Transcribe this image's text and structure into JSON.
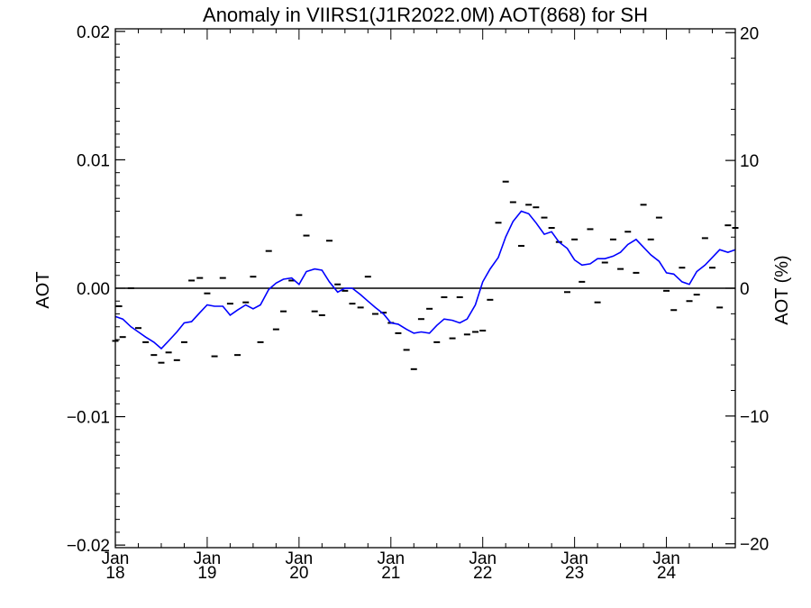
{
  "chart_data": {
    "type": "line",
    "title": "Anomaly in VIIRS1(J1R2022.0M) AOT(868) for SH",
    "ylabel": "AOT",
    "y2label": "AOT (%)",
    "ylim": [
      -0.0202,
      0.0202
    ],
    "y_ticks": [
      "0.02",
      "0.01",
      "0.00",
      "-0.01",
      "-0.02"
    ],
    "y_tick_values": [
      0.02,
      0.01,
      0.0,
      -0.01,
      -0.02
    ],
    "y2lim": [
      -20.3,
      20.3
    ],
    "y2_ticks": [
      "20",
      "10",
      "0",
      "-10",
      "-20"
    ],
    "y2_tick_values": [
      20,
      10,
      0,
      -10,
      -20
    ],
    "xlim": [
      2018.0,
      2024.75
    ],
    "x_ticks": [
      {
        "x": 2018,
        "month": "Jan",
        "year": "18"
      },
      {
        "x": 2019,
        "month": "Jan",
        "year": "19"
      },
      {
        "x": 2020,
        "month": "Jan",
        "year": "20"
      },
      {
        "x": 2021,
        "month": "Jan",
        "year": "21"
      },
      {
        "x": 2022,
        "month": "Jan",
        "year": "22"
      },
      {
        "x": 2023,
        "month": "Jan",
        "year": "23"
      },
      {
        "x": 2024,
        "month": "Jan",
        "year": "24"
      }
    ],
    "zero_line": true,
    "line_color": "#0000ff",
    "marker_color": "#000000",
    "series": [
      {
        "kind": "line",
        "points": [
          [
            2018.0,
            -0.0022
          ],
          [
            2018.08,
            -0.0024
          ],
          [
            2018.17,
            -0.003
          ],
          [
            2018.25,
            -0.0034
          ],
          [
            2018.33,
            -0.0038
          ],
          [
            2018.42,
            -0.0042
          ],
          [
            2018.5,
            -0.0047
          ],
          [
            2018.58,
            -0.0041
          ],
          [
            2018.67,
            -0.0034
          ],
          [
            2018.75,
            -0.0027
          ],
          [
            2018.83,
            -0.0026
          ],
          [
            2018.92,
            -0.0019
          ],
          [
            2019.0,
            -0.0013
          ],
          [
            2019.08,
            -0.0014
          ],
          [
            2019.17,
            -0.0014
          ],
          [
            2019.25,
            -0.0021
          ],
          [
            2019.33,
            -0.0017
          ],
          [
            2019.42,
            -0.0013
          ],
          [
            2019.5,
            -0.0016
          ],
          [
            2019.58,
            -0.0013
          ],
          [
            2019.67,
            -0.0001
          ],
          [
            2019.75,
            0.0004
          ],
          [
            2019.83,
            0.0007
          ],
          [
            2019.92,
            0.0008
          ],
          [
            2020.0,
            0.0003
          ],
          [
            2020.08,
            0.0013
          ],
          [
            2020.17,
            0.0015
          ],
          [
            2020.25,
            0.0014
          ],
          [
            2020.33,
            0.0005
          ],
          [
            2020.42,
            -0.0003
          ],
          [
            2020.5,
            0.0
          ],
          [
            2020.58,
            0.0
          ],
          [
            2020.67,
            -0.0005
          ],
          [
            2020.75,
            -0.001
          ],
          [
            2020.83,
            -0.0015
          ],
          [
            2020.92,
            -0.002
          ],
          [
            2021.0,
            -0.0027
          ],
          [
            2021.08,
            -0.0028
          ],
          [
            2021.17,
            -0.0032
          ],
          [
            2021.25,
            -0.0035
          ],
          [
            2021.33,
            -0.0034
          ],
          [
            2021.42,
            -0.0035
          ],
          [
            2021.5,
            -0.0029
          ],
          [
            2021.58,
            -0.0024
          ],
          [
            2021.67,
            -0.0025
          ],
          [
            2021.75,
            -0.0027
          ],
          [
            2021.83,
            -0.0024
          ],
          [
            2021.92,
            -0.0013
          ],
          [
            2022.0,
            0.0005
          ],
          [
            2022.08,
            0.0015
          ],
          [
            2022.17,
            0.0024
          ],
          [
            2022.25,
            0.004
          ],
          [
            2022.33,
            0.0052
          ],
          [
            2022.42,
            0.006
          ],
          [
            2022.5,
            0.0058
          ],
          [
            2022.58,
            0.0051
          ],
          [
            2022.67,
            0.0042
          ],
          [
            2022.75,
            0.0044
          ],
          [
            2022.83,
            0.0036
          ],
          [
            2022.92,
            0.0031
          ],
          [
            2023.0,
            0.0022
          ],
          [
            2023.08,
            0.0018
          ],
          [
            2023.17,
            0.0019
          ],
          [
            2023.25,
            0.0023
          ],
          [
            2023.33,
            0.0023
          ],
          [
            2023.42,
            0.0025
          ],
          [
            2023.5,
            0.0028
          ],
          [
            2023.58,
            0.0034
          ],
          [
            2023.67,
            0.0038
          ],
          [
            2023.75,
            0.0032
          ],
          [
            2023.83,
            0.0026
          ],
          [
            2023.92,
            0.0021
          ],
          [
            2024.0,
            0.0012
          ],
          [
            2024.08,
            0.0011
          ],
          [
            2024.17,
            0.0005
          ],
          [
            2024.25,
            0.0003
          ],
          [
            2024.33,
            0.0013
          ],
          [
            2024.42,
            0.0018
          ],
          [
            2024.5,
            0.0024
          ],
          [
            2024.58,
            0.003
          ],
          [
            2024.67,
            0.0028
          ],
          [
            2024.75,
            0.003
          ]
        ]
      },
      {
        "kind": "dash-markers",
        "points": [
          [
            2018.0,
            -0.0041
          ],
          [
            2018.04,
            -0.0014
          ],
          [
            2018.08,
            -0.0038
          ],
          [
            2018.17,
            0.0
          ],
          [
            2018.25,
            -0.0031
          ],
          [
            2018.33,
            -0.0042
          ],
          [
            2018.42,
            -0.0052
          ],
          [
            2018.5,
            -0.0058
          ],
          [
            2018.58,
            -0.005
          ],
          [
            2018.67,
            -0.0056
          ],
          [
            2018.75,
            -0.0042
          ],
          [
            2018.83,
            0.0006
          ],
          [
            2018.92,
            0.0008
          ],
          [
            2019.0,
            -0.0004
          ],
          [
            2019.08,
            -0.0053
          ],
          [
            2019.17,
            0.0008
          ],
          [
            2019.25,
            -0.0012
          ],
          [
            2019.33,
            -0.0052
          ],
          [
            2019.42,
            -0.0011
          ],
          [
            2019.5,
            0.0009
          ],
          [
            2019.58,
            -0.0042
          ],
          [
            2019.67,
            0.0029
          ],
          [
            2019.75,
            -0.0032
          ],
          [
            2019.83,
            -0.0018
          ],
          [
            2019.92,
            0.0006
          ],
          [
            2020.0,
            0.0057
          ],
          [
            2020.08,
            0.0041
          ],
          [
            2020.17,
            -0.0018
          ],
          [
            2020.25,
            -0.0021
          ],
          [
            2020.33,
            0.0037
          ],
          [
            2020.42,
            0.0003
          ],
          [
            2020.5,
            -0.0002
          ],
          [
            2020.58,
            -0.0012
          ],
          [
            2020.67,
            -0.0015
          ],
          [
            2020.75,
            0.0009
          ],
          [
            2020.83,
            -0.002
          ],
          [
            2020.92,
            -0.0019
          ],
          [
            2021.0,
            -0.0027
          ],
          [
            2021.08,
            -0.0035
          ],
          [
            2021.17,
            -0.0048
          ],
          [
            2021.25,
            -0.0063
          ],
          [
            2021.33,
            -0.0024
          ],
          [
            2021.42,
            -0.0016
          ],
          [
            2021.5,
            -0.0042
          ],
          [
            2021.58,
            -0.0007
          ],
          [
            2021.67,
            -0.0039
          ],
          [
            2021.75,
            -0.0007
          ],
          [
            2021.83,
            -0.0036
          ],
          [
            2021.92,
            -0.0034
          ],
          [
            2022.0,
            -0.0033
          ],
          [
            2022.08,
            -0.0009
          ],
          [
            2022.17,
            0.0051
          ],
          [
            2022.25,
            0.0083
          ],
          [
            2022.33,
            0.0067
          ],
          [
            2022.42,
            0.0033
          ],
          [
            2022.5,
            0.0065
          ],
          [
            2022.58,
            0.0063
          ],
          [
            2022.67,
            0.0055
          ],
          [
            2022.75,
            0.0047
          ],
          [
            2022.83,
            0.0036
          ],
          [
            2022.92,
            -0.0003
          ],
          [
            2023.0,
            0.0038
          ],
          [
            2023.08,
            0.0005
          ],
          [
            2023.17,
            0.0046
          ],
          [
            2023.25,
            -0.0011
          ],
          [
            2023.33,
            0.002
          ],
          [
            2023.42,
            0.0038
          ],
          [
            2023.5,
            0.0015
          ],
          [
            2023.58,
            0.0044
          ],
          [
            2023.67,
            0.0012
          ],
          [
            2023.75,
            0.0065
          ],
          [
            2023.83,
            0.0038
          ],
          [
            2023.92,
            0.0055
          ],
          [
            2024.0,
            -0.0002
          ],
          [
            2024.08,
            -0.0017
          ],
          [
            2024.17,
            0.0016
          ],
          [
            2024.25,
            -0.001
          ],
          [
            2024.33,
            -0.0005
          ],
          [
            2024.42,
            0.0039
          ],
          [
            2024.5,
            0.0016
          ],
          [
            2024.58,
            -0.0015
          ],
          [
            2024.67,
            0.0049
          ],
          [
            2024.75,
            0.0047
          ]
        ]
      }
    ]
  }
}
